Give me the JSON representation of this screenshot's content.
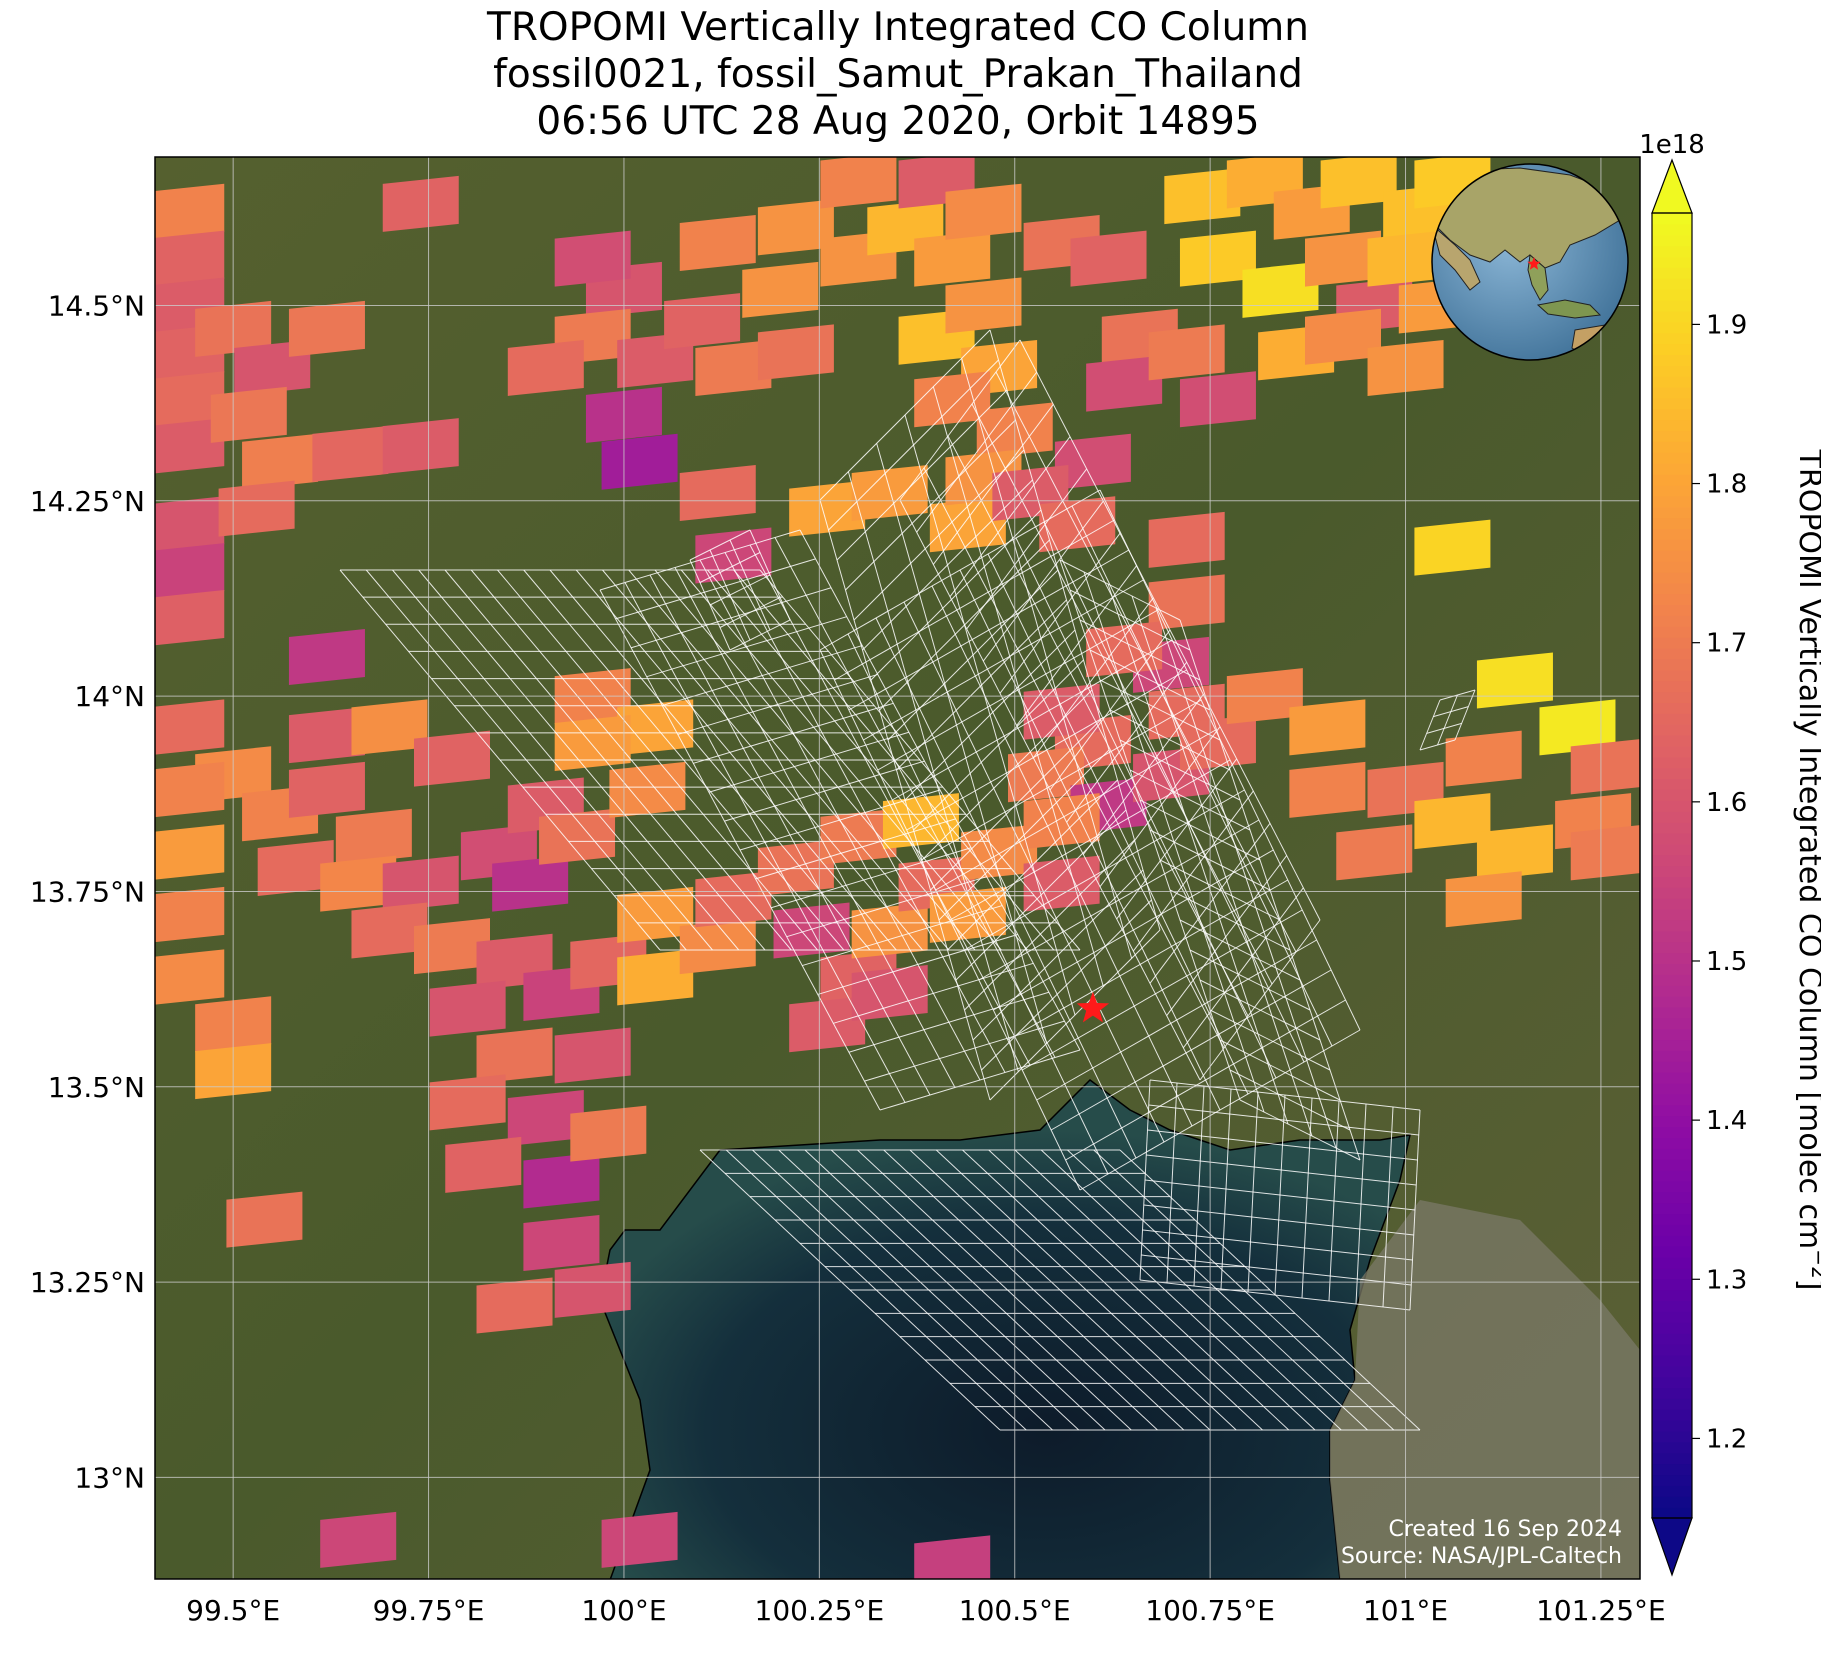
{
  "title": {
    "line1": "TROPOMI Vertically Integrated CO Column",
    "line2": "fossil0021, fossil_Samut_Prakan_Thailand",
    "line3": "06:56 UTC 28 Aug 2020, Orbit 14895"
  },
  "map": {
    "lon_range": [
      99.4,
      101.3
    ],
    "lat_range": [
      12.87,
      14.69
    ],
    "lon_ticks": [
      {
        "value": 99.5,
        "label": "99.5°E"
      },
      {
        "value": 99.75,
        "label": "99.75°E"
      },
      {
        "value": 100.0,
        "label": "100°E"
      },
      {
        "value": 100.25,
        "label": "100.25°E"
      },
      {
        "value": 100.5,
        "label": "100.5°E"
      },
      {
        "value": 100.75,
        "label": "100.75°E"
      },
      {
        "value": 101.0,
        "label": "101°E"
      },
      {
        "value": 101.25,
        "label": "101.25°E"
      }
    ],
    "lat_ticks": [
      {
        "value": 14.5,
        "label": "14.5°N"
      },
      {
        "value": 14.25,
        "label": "14.25°N"
      },
      {
        "value": 14.0,
        "label": "14°N"
      },
      {
        "value": 13.75,
        "label": "13.75°N"
      },
      {
        "value": 13.5,
        "label": "13.5°N"
      },
      {
        "value": 13.25,
        "label": "13.25°N"
      },
      {
        "value": 13.0,
        "label": "13°N"
      }
    ],
    "site_marker": {
      "name": "fossil_Samut_Prakan_Thailand",
      "lon": 100.6,
      "lat": 13.6,
      "color": "#ff1a1a"
    },
    "colors": {
      "land": "#4f5a2e",
      "sea": "#12283a",
      "gridline": "#cccccc",
      "grid_cell_outline": "#ffffff"
    },
    "pixels": [
      {
        "lon": 99.44,
        "lat": 14.62,
        "v": 1.72
      },
      {
        "lon": 99.44,
        "lat": 14.56,
        "v": 1.64
      },
      {
        "lon": 99.44,
        "lat": 14.5,
        "v": 1.62
      },
      {
        "lon": 99.44,
        "lat": 14.44,
        "v": 1.64
      },
      {
        "lon": 99.44,
        "lat": 14.38,
        "v": 1.66
      },
      {
        "lon": 99.44,
        "lat": 14.32,
        "v": 1.62
      },
      {
        "lon": 99.44,
        "lat": 14.22,
        "v": 1.6
      },
      {
        "lon": 99.44,
        "lat": 14.16,
        "v": 1.55
      },
      {
        "lon": 99.44,
        "lat": 14.1,
        "v": 1.63
      },
      {
        "lon": 99.5,
        "lat": 14.47,
        "v": 1.68
      },
      {
        "lon": 99.55,
        "lat": 14.42,
        "v": 1.6
      },
      {
        "lon": 99.52,
        "lat": 14.36,
        "v": 1.69
      },
      {
        "lon": 99.56,
        "lat": 14.3,
        "v": 1.71
      },
      {
        "lon": 99.53,
        "lat": 14.24,
        "v": 1.66
      },
      {
        "lon": 99.62,
        "lat": 14.47,
        "v": 1.69
      },
      {
        "lon": 99.65,
        "lat": 14.31,
        "v": 1.65
      },
      {
        "lon": 99.74,
        "lat": 14.32,
        "v": 1.62
      },
      {
        "lon": 99.74,
        "lat": 14.63,
        "v": 1.64
      },
      {
        "lon": 99.62,
        "lat": 14.05,
        "v": 1.52
      },
      {
        "lon": 99.44,
        "lat": 13.96,
        "v": 1.66
      },
      {
        "lon": 99.5,
        "lat": 13.9,
        "v": 1.74
      },
      {
        "lon": 99.56,
        "lat": 13.85,
        "v": 1.72
      },
      {
        "lon": 99.44,
        "lat": 13.88,
        "v": 1.72
      },
      {
        "lon": 99.44,
        "lat": 13.8,
        "v": 1.78
      },
      {
        "lon": 99.44,
        "lat": 13.72,
        "v": 1.72
      },
      {
        "lon": 99.44,
        "lat": 13.64,
        "v": 1.74
      },
      {
        "lon": 99.5,
        "lat": 13.58,
        "v": 1.72
      },
      {
        "lon": 99.5,
        "lat": 13.52,
        "v": 1.8
      },
      {
        "lon": 99.62,
        "lat": 13.95,
        "v": 1.62
      },
      {
        "lon": 99.7,
        "lat": 13.96,
        "v": 1.75
      },
      {
        "lon": 99.78,
        "lat": 13.92,
        "v": 1.64
      },
      {
        "lon": 99.62,
        "lat": 13.88,
        "v": 1.64
      },
      {
        "lon": 99.68,
        "lat": 13.82,
        "v": 1.7
      },
      {
        "lon": 99.58,
        "lat": 13.78,
        "v": 1.66
      },
      {
        "lon": 99.66,
        "lat": 13.76,
        "v": 1.73
      },
      {
        "lon": 99.74,
        "lat": 13.76,
        "v": 1.6
      },
      {
        "lon": 99.7,
        "lat": 13.7,
        "v": 1.66
      },
      {
        "lon": 99.78,
        "lat": 13.68,
        "v": 1.7
      },
      {
        "lon": 99.84,
        "lat": 13.8,
        "v": 1.58
      },
      {
        "lon": 99.9,
        "lat": 13.86,
        "v": 1.62
      },
      {
        "lon": 99.88,
        "lat": 13.76,
        "v": 1.5
      },
      {
        "lon": 99.94,
        "lat": 13.82,
        "v": 1.68
      },
      {
        "lon": 99.86,
        "lat": 13.66,
        "v": 1.62
      },
      {
        "lon": 99.8,
        "lat": 13.6,
        "v": 1.6
      },
      {
        "lon": 99.92,
        "lat": 13.62,
        "v": 1.55
      },
      {
        "lon": 99.98,
        "lat": 13.66,
        "v": 1.65
      },
      {
        "lon": 99.86,
        "lat": 13.54,
        "v": 1.68
      },
      {
        "lon": 99.8,
        "lat": 13.48,
        "v": 1.66
      },
      {
        "lon": 99.9,
        "lat": 13.46,
        "v": 1.56
      },
      {
        "lon": 99.96,
        "lat": 13.54,
        "v": 1.6
      },
      {
        "lon": 99.82,
        "lat": 13.4,
        "v": 1.64
      },
      {
        "lon": 99.92,
        "lat": 13.38,
        "v": 1.48
      },
      {
        "lon": 99.98,
        "lat": 13.44,
        "v": 1.7
      },
      {
        "lon": 99.92,
        "lat": 13.3,
        "v": 1.56
      },
      {
        "lon": 99.96,
        "lat": 13.24,
        "v": 1.6
      },
      {
        "lon": 99.86,
        "lat": 13.22,
        "v": 1.66
      },
      {
        "lon": 99.54,
        "lat": 13.33,
        "v": 1.68
      },
      {
        "lon": 99.96,
        "lat": 14.0,
        "v": 1.72
      },
      {
        "lon": 100.04,
        "lat": 13.96,
        "v": 1.8
      },
      {
        "lon": 99.96,
        "lat": 13.94,
        "v": 1.78
      },
      {
        "lon": 100.03,
        "lat": 13.88,
        "v": 1.74
      },
      {
        "lon": 100.04,
        "lat": 13.72,
        "v": 1.78
      },
      {
        "lon": 100.04,
        "lat": 13.64,
        "v": 1.82
      },
      {
        "lon": 100.12,
        "lat": 13.68,
        "v": 1.74
      },
      {
        "lon": 100.14,
        "lat": 13.74,
        "v": 1.66
      },
      {
        "lon": 100.22,
        "lat": 13.78,
        "v": 1.68
      },
      {
        "lon": 100.24,
        "lat": 13.7,
        "v": 1.56
      },
      {
        "lon": 100.3,
        "lat": 13.64,
        "v": 1.64
      },
      {
        "lon": 100.26,
        "lat": 13.58,
        "v": 1.62
      },
      {
        "lon": 100.34,
        "lat": 13.62,
        "v": 1.6
      },
      {
        "lon": 100.34,
        "lat": 13.7,
        "v": 1.76
      },
      {
        "lon": 100.3,
        "lat": 13.82,
        "v": 1.7
      },
      {
        "lon": 100.38,
        "lat": 13.84,
        "v": 1.84
      },
      {
        "lon": 100.4,
        "lat": 13.76,
        "v": 1.66
      },
      {
        "lon": 100.48,
        "lat": 13.8,
        "v": 1.74
      },
      {
        "lon": 100.56,
        "lat": 13.76,
        "v": 1.62
      },
      {
        "lon": 100.44,
        "lat": 13.72,
        "v": 1.78
      },
      {
        "lon": 100.0,
        "lat": 14.52,
        "v": 1.6
      },
      {
        "lon": 99.96,
        "lat": 14.46,
        "v": 1.7
      },
      {
        "lon": 100.04,
        "lat": 14.43,
        "v": 1.62
      },
      {
        "lon": 100.0,
        "lat": 14.36,
        "v": 1.5
      },
      {
        "lon": 100.02,
        "lat": 14.3,
        "v": 1.44
      },
      {
        "lon": 99.96,
        "lat": 14.56,
        "v": 1.58
      },
      {
        "lon": 99.9,
        "lat": 14.42,
        "v": 1.66
      },
      {
        "lon": 100.1,
        "lat": 14.48,
        "v": 1.64
      },
      {
        "lon": 100.14,
        "lat": 14.42,
        "v": 1.7
      },
      {
        "lon": 100.12,
        "lat": 14.26,
        "v": 1.66
      },
      {
        "lon": 100.14,
        "lat": 14.18,
        "v": 1.56
      },
      {
        "lon": 100.12,
        "lat": 14.58,
        "v": 1.72
      },
      {
        "lon": 100.2,
        "lat": 14.52,
        "v": 1.76
      },
      {
        "lon": 100.22,
        "lat": 14.6,
        "v": 1.76
      },
      {
        "lon": 100.3,
        "lat": 14.56,
        "v": 1.76
      },
      {
        "lon": 100.36,
        "lat": 14.6,
        "v": 1.84
      },
      {
        "lon": 100.42,
        "lat": 14.56,
        "v": 1.78
      },
      {
        "lon": 100.3,
        "lat": 14.66,
        "v": 1.72
      },
      {
        "lon": 100.4,
        "lat": 14.66,
        "v": 1.62
      },
      {
        "lon": 100.46,
        "lat": 14.62,
        "v": 1.74
      },
      {
        "lon": 100.4,
        "lat": 14.46,
        "v": 1.86
      },
      {
        "lon": 100.46,
        "lat": 14.5,
        "v": 1.76
      },
      {
        "lon": 100.48,
        "lat": 14.42,
        "v": 1.8
      },
      {
        "lon": 100.42,
        "lat": 14.38,
        "v": 1.72
      },
      {
        "lon": 100.22,
        "lat": 14.44,
        "v": 1.68
      },
      {
        "lon": 100.5,
        "lat": 14.34,
        "v": 1.72
      },
      {
        "lon": 100.56,
        "lat": 14.58,
        "v": 1.68
      },
      {
        "lon": 100.62,
        "lat": 14.56,
        "v": 1.64
      },
      {
        "lon": 100.6,
        "lat": 14.3,
        "v": 1.58
      },
      {
        "lon": 100.66,
        "lat": 14.46,
        "v": 1.68
      },
      {
        "lon": 100.64,
        "lat": 14.4,
        "v": 1.58
      },
      {
        "lon": 100.26,
        "lat": 14.24,
        "v": 1.8
      },
      {
        "lon": 100.34,
        "lat": 14.26,
        "v": 1.78
      },
      {
        "lon": 100.44,
        "lat": 14.22,
        "v": 1.8
      },
      {
        "lon": 100.46,
        "lat": 14.28,
        "v": 1.76
      },
      {
        "lon": 100.52,
        "lat": 14.26,
        "v": 1.62
      },
      {
        "lon": 100.58,
        "lat": 14.22,
        "v": 1.66
      },
      {
        "lon": 100.74,
        "lat": 14.64,
        "v": 1.86
      },
      {
        "lon": 100.82,
        "lat": 14.66,
        "v": 1.82
      },
      {
        "lon": 100.88,
        "lat": 14.62,
        "v": 1.78
      },
      {
        "lon": 100.94,
        "lat": 14.66,
        "v": 1.86
      },
      {
        "lon": 101.02,
        "lat": 14.62,
        "v": 1.86
      },
      {
        "lon": 101.06,
        "lat": 14.66,
        "v": 1.88
      },
      {
        "lon": 100.76,
        "lat": 14.56,
        "v": 1.88
      },
      {
        "lon": 100.84,
        "lat": 14.52,
        "v": 1.92
      },
      {
        "lon": 100.86,
        "lat": 14.44,
        "v": 1.82
      },
      {
        "lon": 100.92,
        "lat": 14.56,
        "v": 1.76
      },
      {
        "lon": 100.96,
        "lat": 14.5,
        "v": 1.62
      },
      {
        "lon": 101.0,
        "lat": 14.56,
        "v": 1.84
      },
      {
        "lon": 101.04,
        "lat": 14.5,
        "v": 1.78
      },
      {
        "lon": 100.92,
        "lat": 14.46,
        "v": 1.74
      },
      {
        "lon": 101.0,
        "lat": 14.42,
        "v": 1.76
      },
      {
        "lon": 100.72,
        "lat": 14.44,
        "v": 1.7
      },
      {
        "lon": 100.76,
        "lat": 14.38,
        "v": 1.58
      },
      {
        "lon": 100.72,
        "lat": 14.2,
        "v": 1.66
      },
      {
        "lon": 100.72,
        "lat": 14.12,
        "v": 1.68
      },
      {
        "lon": 100.7,
        "lat": 14.04,
        "v": 1.56
      },
      {
        "lon": 100.72,
        "lat": 13.98,
        "v": 1.66
      },
      {
        "lon": 100.64,
        "lat": 14.06,
        "v": 1.66
      },
      {
        "lon": 100.6,
        "lat": 13.94,
        "v": 1.66
      },
      {
        "lon": 100.56,
        "lat": 13.98,
        "v": 1.62
      },
      {
        "lon": 100.54,
        "lat": 13.9,
        "v": 1.7
      },
      {
        "lon": 100.62,
        "lat": 13.86,
        "v": 1.52
      },
      {
        "lon": 100.7,
        "lat": 13.9,
        "v": 1.6
      },
      {
        "lon": 100.76,
        "lat": 13.94,
        "v": 1.66
      },
      {
        "lon": 100.56,
        "lat": 13.84,
        "v": 1.72
      },
      {
        "lon": 100.82,
        "lat": 14.0,
        "v": 1.72
      },
      {
        "lon": 100.9,
        "lat": 13.96,
        "v": 1.78
      },
      {
        "lon": 100.9,
        "lat": 13.88,
        "v": 1.72
      },
      {
        "lon": 100.96,
        "lat": 13.8,
        "v": 1.7
      },
      {
        "lon": 101.0,
        "lat": 13.88,
        "v": 1.68
      },
      {
        "lon": 101.06,
        "lat": 13.84,
        "v": 1.84
      },
      {
        "lon": 101.1,
        "lat": 13.92,
        "v": 1.72
      },
      {
        "lon": 101.14,
        "lat": 13.8,
        "v": 1.84
      },
      {
        "lon": 101.1,
        "lat": 13.74,
        "v": 1.76
      },
      {
        "lon": 101.06,
        "lat": 14.19,
        "v": 1.9
      },
      {
        "lon": 101.14,
        "lat": 14.02,
        "v": 1.92
      },
      {
        "lon": 101.22,
        "lat": 13.96,
        "v": 1.94
      },
      {
        "lon": 101.26,
        "lat": 13.91,
        "v": 1.68
      },
      {
        "lon": 101.24,
        "lat": 13.84,
        "v": 1.72
      },
      {
        "lon": 101.26,
        "lat": 13.8,
        "v": 1.7
      },
      {
        "lon": 99.66,
        "lat": 12.92,
        "v": 1.56
      },
      {
        "lon": 100.02,
        "lat": 12.92,
        "v": 1.56
      },
      {
        "lon": 100.42,
        "lat": 12.89,
        "v": 1.54
      }
    ]
  },
  "colorbar": {
    "label": "TROPOMI Vertically Integrated CO Column [molec cm",
    "label_exponent": "−2",
    "label_close": "]",
    "multiplier": "1e18",
    "min": 1.15,
    "max": 1.97,
    "ticks": [
      {
        "value": 1.2,
        "label": "1.2"
      },
      {
        "value": 1.3,
        "label": "1.3"
      },
      {
        "value": 1.4,
        "label": "1.4"
      },
      {
        "value": 1.5,
        "label": "1.5"
      },
      {
        "value": 1.6,
        "label": "1.6"
      },
      {
        "value": 1.7,
        "label": "1.7"
      },
      {
        "value": 1.8,
        "label": "1.8"
      },
      {
        "value": 1.9,
        "label": "1.9"
      }
    ],
    "colormap": "plasma",
    "extend": "both"
  },
  "credit": {
    "line1": "Created 16 Sep 2024",
    "line2": "Source: NASA/JPL-Caltech"
  },
  "inset": {
    "type": "globe",
    "marker_color": "#ff1a1a"
  }
}
